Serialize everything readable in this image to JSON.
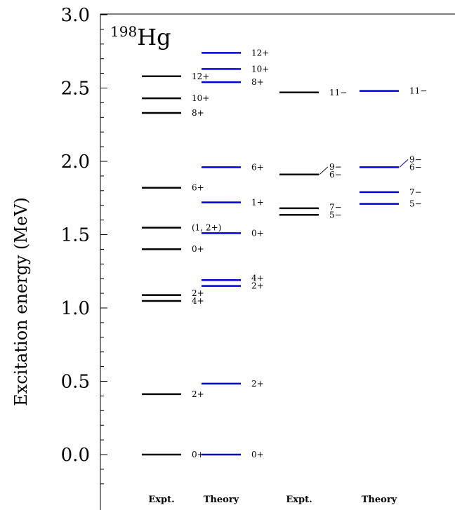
{
  "chart_data": {
    "type": "level-scheme",
    "ylabel": "Excitation energy (MeV)",
    "ylim": [
      -0.27,
      3.0
    ],
    "yticks": [
      "0.0",
      "0.5",
      "1.0",
      "1.5",
      "2.0",
      "2.5",
      "3.0"
    ],
    "nucleus": {
      "mass": "198",
      "symbol": "Hg"
    },
    "colors": {
      "expt": "#000000",
      "theory": "#0000cc"
    },
    "columns": [
      {
        "name": "Expt.",
        "kind": "expt",
        "levels": [
          {
            "energy": 0.0,
            "label": "0+"
          },
          {
            "energy": 0.412,
            "label": "2+"
          },
          {
            "energy": 1.048,
            "label": "4+"
          },
          {
            "energy": 1.088,
            "label": "2+"
          },
          {
            "energy": 1.401,
            "label": "0+"
          },
          {
            "energy": 1.548,
            "label": "(1, 2+)"
          },
          {
            "energy": 1.82,
            "label": "6+"
          },
          {
            "energy": 2.33,
            "label": "8+"
          },
          {
            "energy": 2.43,
            "label": "10+"
          },
          {
            "energy": 2.58,
            "label": "12+"
          }
        ]
      },
      {
        "name": "Theory",
        "kind": "theory",
        "levels": [
          {
            "energy": 0.0,
            "label": "0+"
          },
          {
            "energy": 0.484,
            "label": "2+"
          },
          {
            "energy": 1.15,
            "label": "2+"
          },
          {
            "energy": 1.19,
            "label": "4+"
          },
          {
            "energy": 1.51,
            "label": "0+"
          },
          {
            "energy": 1.72,
            "label": "1+"
          },
          {
            "energy": 1.96,
            "label": "6+"
          },
          {
            "energy": 2.54,
            "label": "8+"
          },
          {
            "energy": 2.63,
            "label": "10+"
          },
          {
            "energy": 2.74,
            "label": "12+"
          }
        ]
      },
      {
        "name": "Expt.",
        "kind": "expt",
        "levels": [
          {
            "energy": 1.635,
            "label": "5−"
          },
          {
            "energy": 1.68,
            "label": "7−"
          },
          {
            "energy": 1.91,
            "label": "6−"
          },
          {
            "energy": 1.91,
            "label": "9−"
          },
          {
            "energy": 2.47,
            "label": "11−"
          }
        ]
      },
      {
        "name": "Theory",
        "kind": "theory",
        "levels": [
          {
            "energy": 1.71,
            "label": "5−"
          },
          {
            "energy": 1.79,
            "label": "7−"
          },
          {
            "energy": 1.96,
            "label": "6−"
          },
          {
            "energy": 1.96,
            "label": "9−"
          },
          {
            "energy": 2.48,
            "label": "11−"
          }
        ]
      }
    ]
  }
}
